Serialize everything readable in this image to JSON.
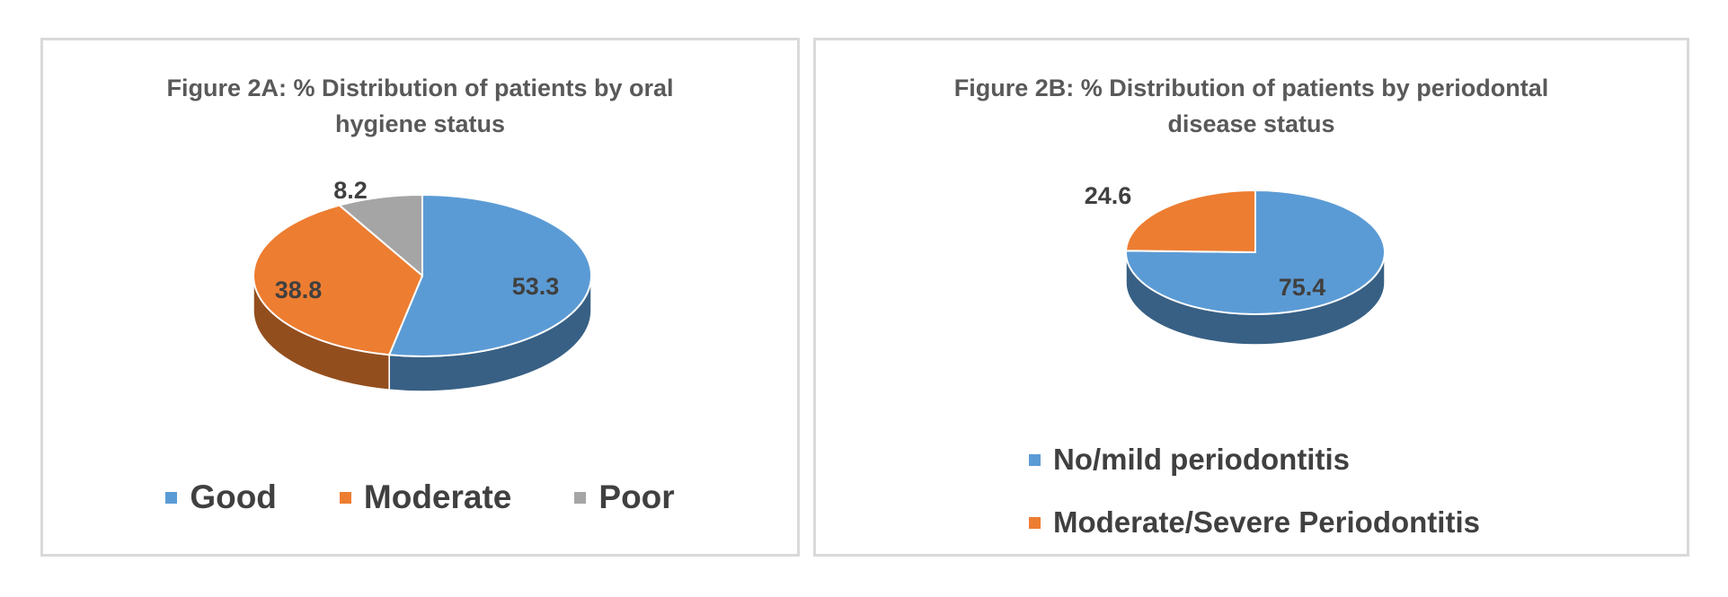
{
  "colors": {
    "blue": "#5b9bd5",
    "orange": "#ed7d31",
    "gray": "#a5a5a5",
    "label": "#404040"
  },
  "chart_data": [
    {
      "type": "pie",
      "title": "Figure 2A: % Distribution of patients by oral hygiene status",
      "title_lines": [
        "Figure 2A: % Distribution of patients by oral",
        "hygiene status"
      ],
      "categories": [
        "Good",
        "Moderate",
        "Poor"
      ],
      "values": [
        53.3,
        38.8,
        8.2
      ],
      "value_labels": [
        "53.3",
        "38.8",
        "8.2"
      ],
      "colors": [
        "#5b9bd5",
        "#ed7d31",
        "#a5a5a5"
      ],
      "legend_position": "bottom",
      "style": "3d"
    },
    {
      "type": "pie",
      "title": "Figure 2B: % Distribution of patients by periodontal disease status",
      "title_lines": [
        "Figure 2B: % Distribution of patients by periodontal",
        "disease status"
      ],
      "categories": [
        "No/mild periodontitis",
        "Moderate/Severe Periodontitis"
      ],
      "values": [
        75.4,
        24.6
      ],
      "value_labels": [
        "75.4",
        "24.6"
      ],
      "colors": [
        "#5b9bd5",
        "#ed7d31"
      ],
      "legend_position": "bottom",
      "style": "3d"
    }
  ]
}
